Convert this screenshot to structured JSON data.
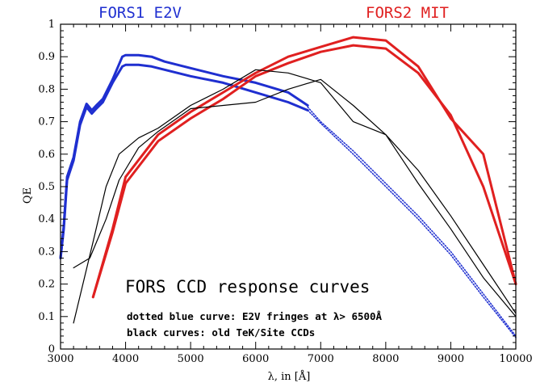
{
  "chart_data": {
    "type": "line",
    "title": "FORS CCD response curves",
    "xlabel": "λ, in [Å]",
    "ylabel": "QE",
    "xlim": [
      3000,
      10000
    ],
    "ylim": [
      0,
      1
    ],
    "x_ticks": [
      3000,
      4000,
      5000,
      6000,
      7000,
      8000,
      9000,
      10000
    ],
    "y_ticks": [
      0,
      0.1,
      0.2,
      0.3,
      0.4,
      0.5,
      0.6,
      0.7,
      0.8,
      0.9,
      1
    ],
    "x_tick_labels": [
      "3000",
      "4000",
      "5000",
      "6000",
      "7000",
      "8000",
      "9000",
      "10000"
    ],
    "y_tick_labels": [
      "0",
      "0.1",
      "0.2",
      "0.3",
      "0.4",
      "0.5",
      "0.6",
      "0.7",
      "0.8",
      "0.9",
      "1"
    ],
    "grid": false,
    "legend": [
      {
        "label": "FORS1 E2V",
        "color": "#1f2fd0",
        "position": "top-left"
      },
      {
        "label": "FORS2 MIT",
        "color": "#e02020",
        "position": "top-right"
      }
    ],
    "notes": [
      "dotted blue curve: E2V fringes at λ> 6500Å",
      "black curves: old TeK/Site CCDs"
    ],
    "series": [
      {
        "group": "FORS1 E2V",
        "color": "#1f2fd0",
        "style": "solid",
        "width": 3,
        "points": [
          [
            3000,
            0.28
          ],
          [
            3050,
            0.38
          ],
          [
            3100,
            0.53
          ],
          [
            3200,
            0.59
          ],
          [
            3300,
            0.7
          ],
          [
            3400,
            0.755
          ],
          [
            3480,
            0.735
          ],
          [
            3550,
            0.75
          ],
          [
            3650,
            0.77
          ],
          [
            3800,
            0.83
          ],
          [
            3950,
            0.9
          ],
          [
            4000,
            0.905
          ],
          [
            4200,
            0.905
          ],
          [
            4400,
            0.9
          ],
          [
            4600,
            0.885
          ],
          [
            5000,
            0.865
          ],
          [
            5500,
            0.84
          ],
          [
            6000,
            0.82
          ],
          [
            6500,
            0.79
          ],
          [
            6800,
            0.75
          ]
        ]
      },
      {
        "group": "FORS1 E2V",
        "color": "#1f2fd0",
        "style": "solid",
        "width": 3,
        "points": [
          [
            3000,
            0.28
          ],
          [
            3050,
            0.37
          ],
          [
            3100,
            0.52
          ],
          [
            3200,
            0.58
          ],
          [
            3300,
            0.69
          ],
          [
            3400,
            0.745
          ],
          [
            3480,
            0.725
          ],
          [
            3550,
            0.74
          ],
          [
            3650,
            0.76
          ],
          [
            3800,
            0.82
          ],
          [
            3950,
            0.87
          ],
          [
            4000,
            0.875
          ],
          [
            4200,
            0.875
          ],
          [
            4400,
            0.87
          ],
          [
            4600,
            0.86
          ],
          [
            5000,
            0.84
          ],
          [
            5500,
            0.82
          ],
          [
            6000,
            0.79
          ],
          [
            6500,
            0.76
          ],
          [
            6800,
            0.735
          ]
        ]
      },
      {
        "group": "FORS1 E2V fringes",
        "color": "#1f2fd0",
        "style": "dotted",
        "width": 1.5,
        "points": [
          [
            6800,
            0.745
          ],
          [
            7000,
            0.7
          ],
          [
            7500,
            0.61
          ],
          [
            8000,
            0.51
          ],
          [
            8500,
            0.41
          ],
          [
            9000,
            0.3
          ],
          [
            9500,
            0.17
          ],
          [
            10000,
            0.04
          ]
        ]
      },
      {
        "group": "FORS1 E2V fringes",
        "color": "#1f2fd0",
        "style": "dotted",
        "width": 1.5,
        "points": [
          [
            6800,
            0.735
          ],
          [
            7000,
            0.695
          ],
          [
            7500,
            0.6
          ],
          [
            8000,
            0.5
          ],
          [
            8500,
            0.4
          ],
          [
            9000,
            0.29
          ],
          [
            9500,
            0.16
          ],
          [
            10000,
            0.035
          ]
        ]
      },
      {
        "group": "FORS2 MIT",
        "color": "#e02020",
        "style": "solid",
        "width": 3,
        "points": [
          [
            3500,
            0.16
          ],
          [
            3800,
            0.37
          ],
          [
            4000,
            0.53
          ],
          [
            4500,
            0.66
          ],
          [
            5000,
            0.73
          ],
          [
            5500,
            0.79
          ],
          [
            6000,
            0.85
          ],
          [
            6500,
            0.9
          ],
          [
            7000,
            0.93
          ],
          [
            7500,
            0.96
          ],
          [
            8000,
            0.95
          ],
          [
            8500,
            0.87
          ],
          [
            9000,
            0.71
          ],
          [
            9500,
            0.6
          ],
          [
            10000,
            0.2
          ]
        ]
      },
      {
        "group": "FORS2 MIT",
        "color": "#e02020",
        "style": "solid",
        "width": 3,
        "points": [
          [
            3500,
            0.16
          ],
          [
            3800,
            0.36
          ],
          [
            4000,
            0.51
          ],
          [
            4500,
            0.64
          ],
          [
            5000,
            0.71
          ],
          [
            5500,
            0.77
          ],
          [
            6000,
            0.84
          ],
          [
            6500,
            0.88
          ],
          [
            7000,
            0.915
          ],
          [
            7500,
            0.935
          ],
          [
            8000,
            0.925
          ],
          [
            8500,
            0.85
          ],
          [
            9000,
            0.72
          ],
          [
            9500,
            0.5
          ],
          [
            10000,
            0.2
          ]
        ]
      },
      {
        "group": "old TeK/Site CCDs",
        "color": "#000000",
        "style": "solid",
        "width": 1.2,
        "points": [
          [
            3200,
            0.08
          ],
          [
            3500,
            0.33
          ],
          [
            3700,
            0.5
          ],
          [
            3900,
            0.6
          ],
          [
            4200,
            0.65
          ],
          [
            4500,
            0.68
          ],
          [
            5000,
            0.75
          ],
          [
            5500,
            0.8
          ],
          [
            6000,
            0.86
          ],
          [
            6500,
            0.85
          ],
          [
            7000,
            0.82
          ],
          [
            7500,
            0.7
          ],
          [
            8000,
            0.66
          ],
          [
            8500,
            0.55
          ],
          [
            9000,
            0.41
          ],
          [
            9500,
            0.26
          ],
          [
            10000,
            0.11
          ]
        ]
      },
      {
        "group": "old TeK/Site CCDs",
        "color": "#000000",
        "style": "solid",
        "width": 1.2,
        "points": [
          [
            3200,
            0.25
          ],
          [
            3450,
            0.28
          ],
          [
            3700,
            0.4
          ],
          [
            3900,
            0.52
          ],
          [
            4200,
            0.62
          ],
          [
            4500,
            0.67
          ],
          [
            5000,
            0.74
          ],
          [
            5500,
            0.75
          ],
          [
            6000,
            0.76
          ],
          [
            6500,
            0.8
          ],
          [
            7000,
            0.83
          ],
          [
            7500,
            0.75
          ],
          [
            8000,
            0.66
          ],
          [
            8500,
            0.51
          ],
          [
            9000,
            0.37
          ],
          [
            9500,
            0.22
          ],
          [
            10000,
            0.1
          ]
        ]
      }
    ]
  }
}
